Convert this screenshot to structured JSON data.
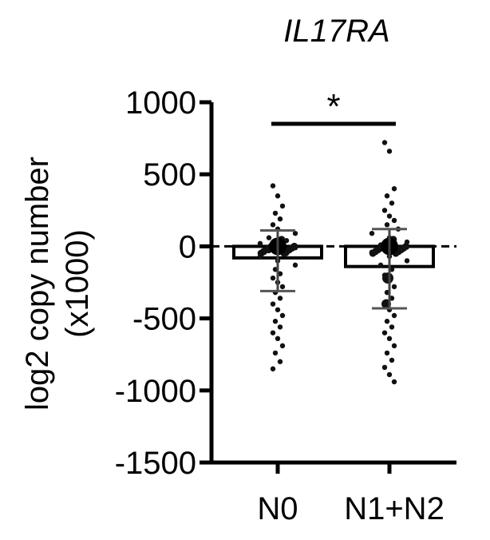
{
  "chart_data": {
    "type": "bar",
    "title": "IL17RA",
    "ylabel": "log2 copy number (x1000)",
    "ylabel_lines": [
      "log2 copy number",
      "(x1000)"
    ],
    "xlabel": "",
    "categories": [
      "N0",
      "N1+N2"
    ],
    "values": [
      -80,
      -140
    ],
    "mean_marker": [
      0,
      0
    ],
    "sd_upper": [
      110,
      120
    ],
    "sd_lower": [
      -310,
      -430
    ],
    "ylim": [
      -1500,
      1000
    ],
    "yticks": [
      -1500,
      -1000,
      -500,
      0,
      500,
      1000
    ],
    "ytick_labels": [
      "-1500",
      "-1000",
      "-500",
      "0",
      "500",
      "1000"
    ],
    "zero_line": "dashed",
    "significance": {
      "between": [
        "N0",
        "N1+N2"
      ],
      "label": "*"
    },
    "points": [
      [
        420,
        350,
        280,
        230,
        190,
        150,
        120,
        90,
        60,
        40,
        20,
        5,
        -10,
        -30,
        -50,
        -70,
        -100,
        -130,
        -160,
        -190,
        -220,
        -250,
        -280,
        -320,
        -360,
        -400,
        -440,
        -480,
        -520,
        -560,
        -600,
        -640,
        -690,
        -740,
        -800,
        -850
      ],
      [
        720,
        660,
        400,
        350,
        300,
        250,
        210,
        180,
        150,
        120,
        90,
        60,
        30,
        10,
        -10,
        -40,
        -70,
        -100,
        -130,
        -160,
        -200,
        -240,
        -280,
        -320,
        -360,
        -400,
        -440,
        -480,
        -520,
        -560,
        -600,
        -640,
        -690,
        -740,
        -790,
        -840,
        -890,
        -940
      ]
    ],
    "grid": false,
    "legend": "none"
  }
}
